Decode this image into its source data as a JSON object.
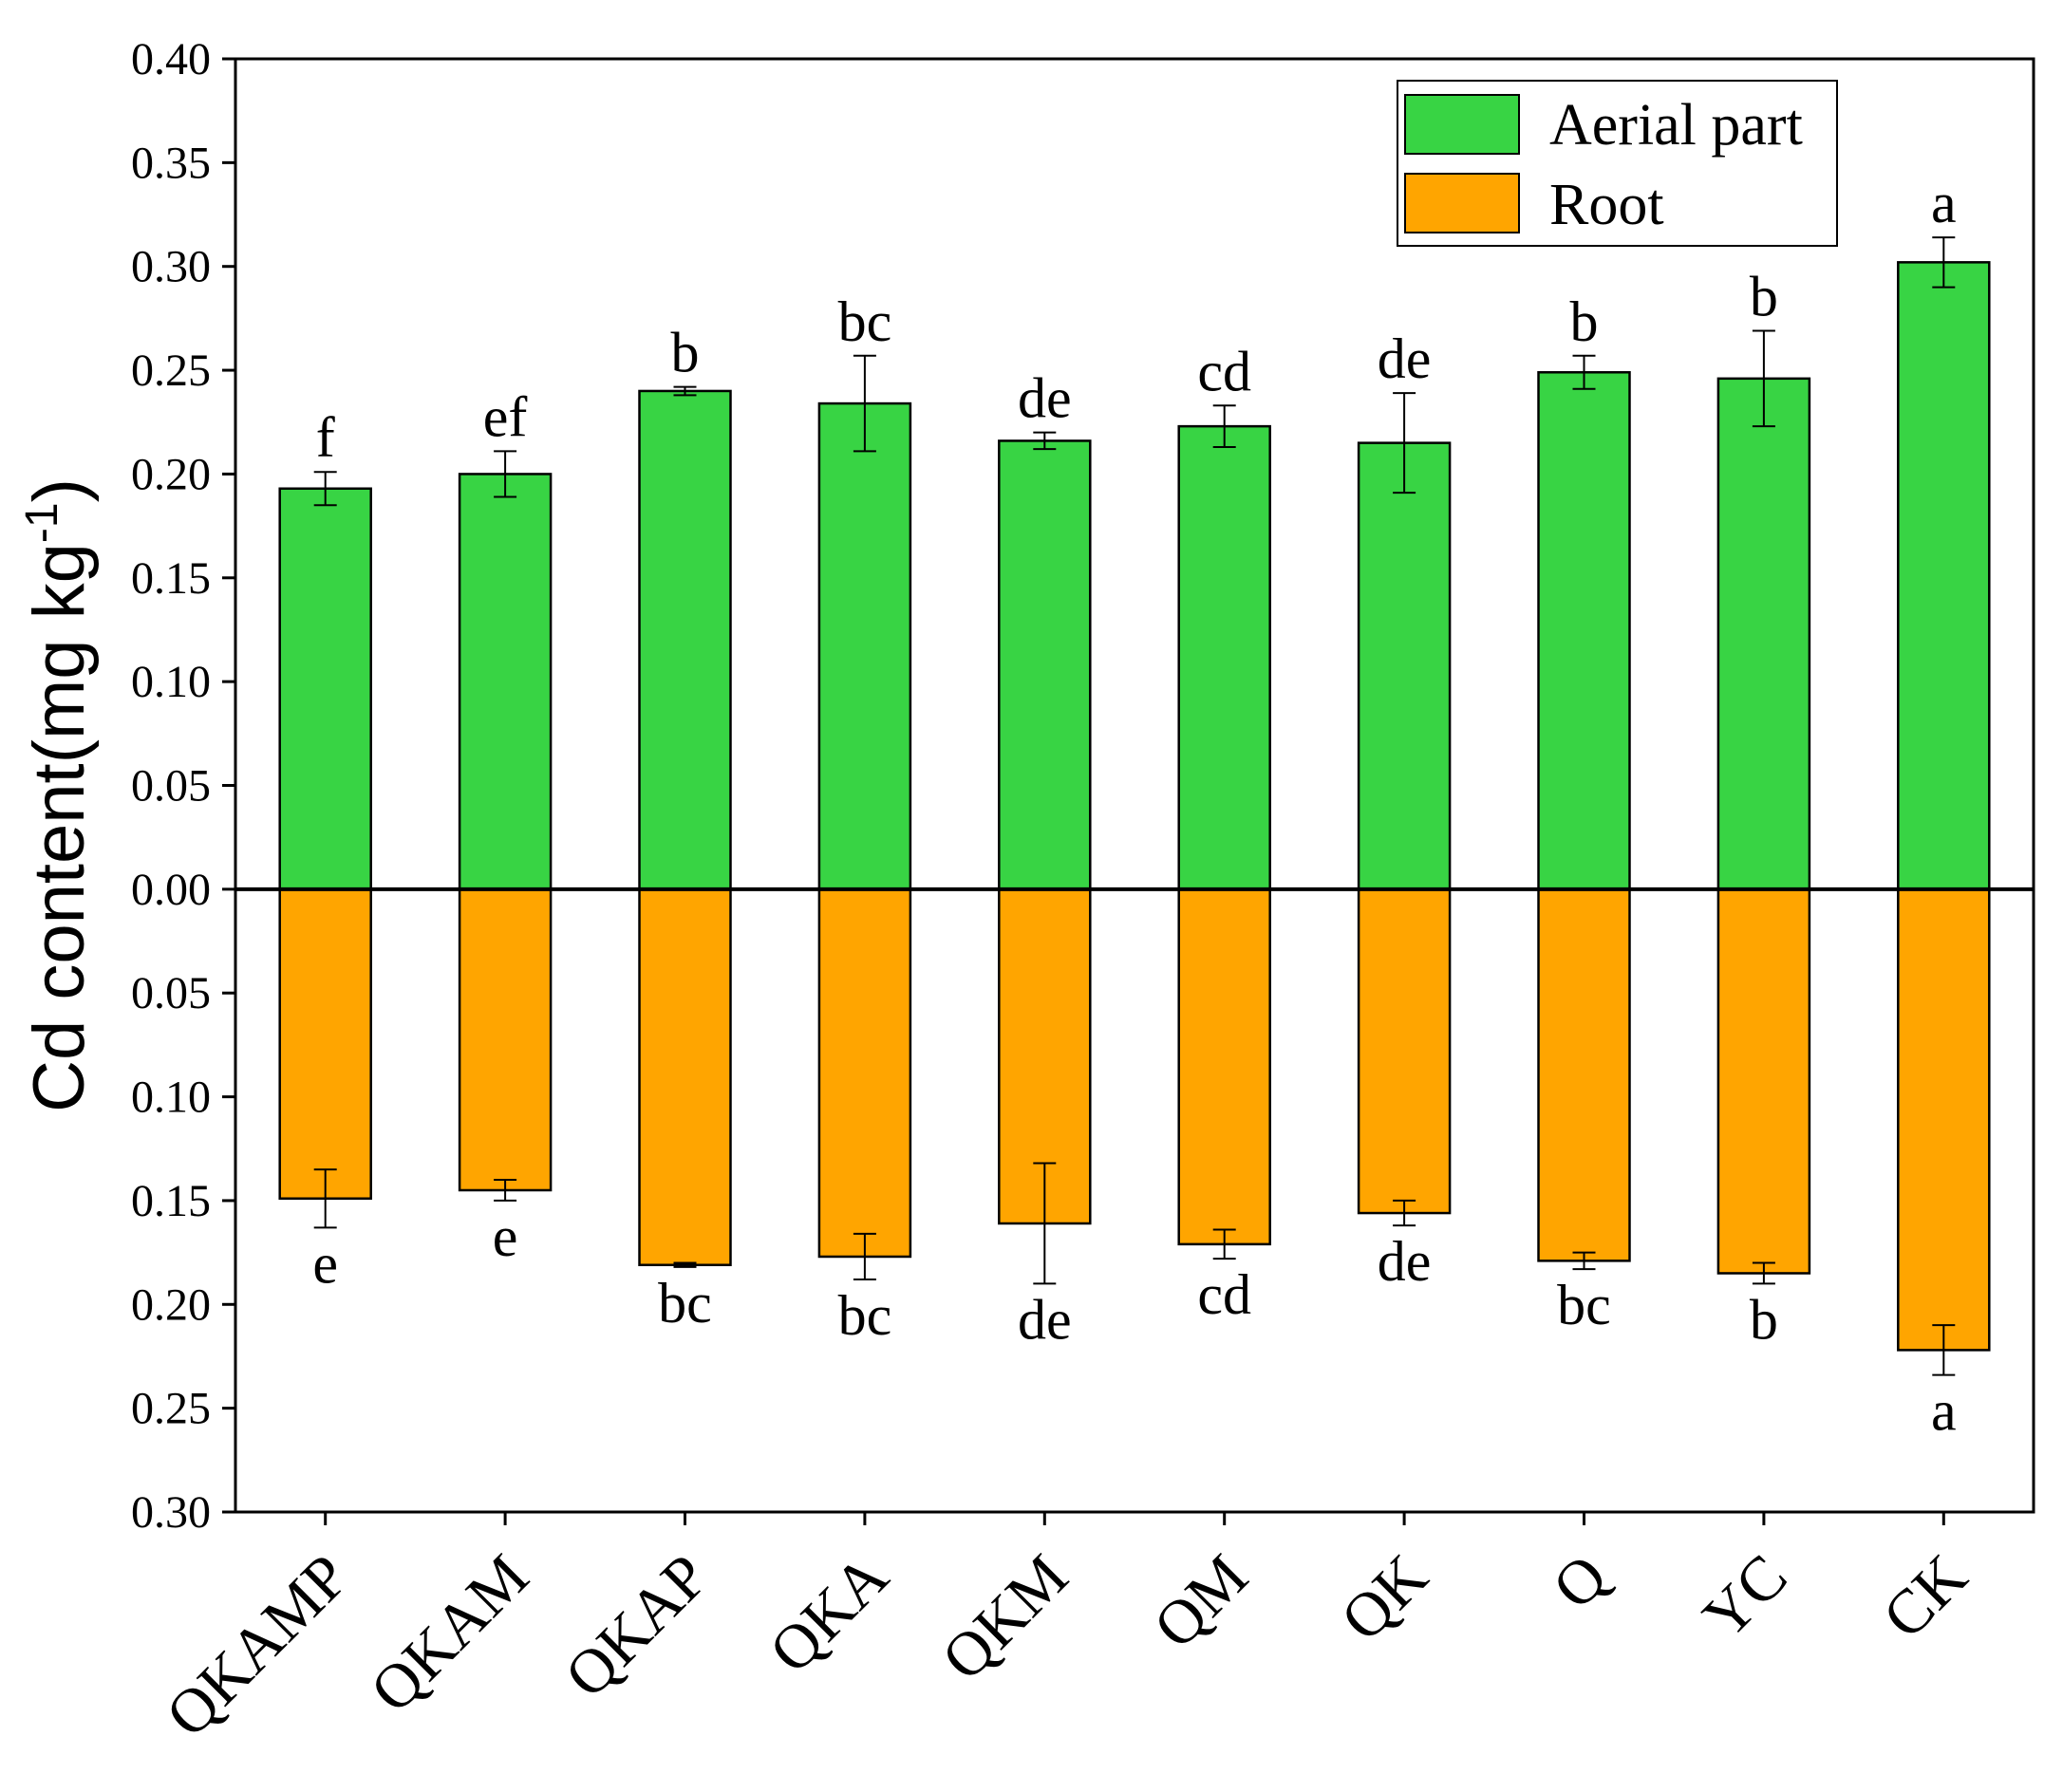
{
  "chart_data": {
    "type": "bar",
    "title": "",
    "xlabel": "",
    "ylabel": "Cd content(mg kg",
    "ylabel_superscript": "-1",
    "ylabel_suffix": ")",
    "ylim": [
      -0.3,
      0.4
    ],
    "y_ticks": [
      0.4,
      0.35,
      0.3,
      0.25,
      0.2,
      0.15,
      0.1,
      0.05,
      0.0,
      -0.05,
      -0.1,
      -0.15,
      -0.2,
      -0.25,
      -0.3
    ],
    "y_tick_labels": [
      "0.40",
      "0.35",
      "0.30",
      "0.25",
      "0.20",
      "0.15",
      "0.10",
      "0.05",
      "0.00",
      "0.05",
      "0.10",
      "0.15",
      "0.20",
      "0.25",
      "0.30"
    ],
    "categories": [
      "QKAMP",
      "QKAM",
      "QKAP",
      "QKA",
      "QKM",
      "QM",
      "QK",
      "Q",
      "YC",
      "CK"
    ],
    "legend_position": "top-right",
    "grid": false,
    "series": [
      {
        "name": "Aerial part",
        "color": "#38d444",
        "values": [
          0.193,
          0.2,
          0.24,
          0.234,
          0.216,
          0.223,
          0.215,
          0.249,
          0.246,
          0.302
        ],
        "errors": [
          0.008,
          0.011,
          0.002,
          0.023,
          0.004,
          0.01,
          0.024,
          0.008,
          0.023,
          0.012
        ],
        "letters": [
          "f",
          "ef",
          "b",
          "bc",
          "de",
          "cd",
          "de",
          "b",
          "b",
          "a"
        ]
      },
      {
        "name": "Root",
        "color": "#ffa500",
        "values": [
          0.149,
          0.145,
          0.181,
          0.177,
          0.161,
          0.171,
          0.156,
          0.179,
          0.185,
          0.222
        ],
        "errors": [
          0.014,
          0.005,
          0.001,
          0.011,
          0.029,
          0.007,
          0.006,
          0.004,
          0.005,
          0.012
        ],
        "letters": [
          "e",
          "e",
          "bc",
          "bc",
          "de",
          "cd",
          "de",
          "bc",
          "b",
          "a"
        ]
      }
    ]
  }
}
